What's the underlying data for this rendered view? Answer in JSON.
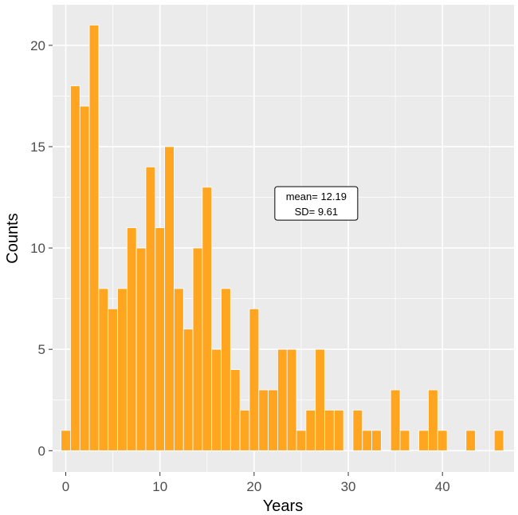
{
  "chart_data": {
    "type": "bar",
    "xlabel": "Years",
    "ylabel": "Counts",
    "xlim": [
      -1.4,
      47.6
    ],
    "ylim": [
      -1.05,
      22.0
    ],
    "x_ticks": [
      0,
      10,
      20,
      30,
      40
    ],
    "y_ticks": [
      0,
      5,
      10,
      15,
      20
    ],
    "grid": true,
    "bar_color": "#FFA520",
    "panel_background": "#EBEBEB",
    "grid_color": "#FFFFFF",
    "x": [
      0,
      1,
      2,
      3,
      4,
      5,
      6,
      7,
      8,
      9,
      10,
      11,
      12,
      13,
      14,
      15,
      16,
      17,
      18,
      19,
      20,
      21,
      22,
      23,
      24,
      25,
      26,
      27,
      28,
      29,
      30,
      31,
      32,
      33,
      34,
      35,
      36,
      37,
      38,
      39,
      40,
      41,
      42,
      43,
      44,
      45,
      46
    ],
    "values": [
      1,
      18,
      17,
      21,
      8,
      7,
      8,
      11,
      10,
      14,
      11,
      15,
      8,
      6,
      10,
      13,
      5,
      8,
      4,
      2,
      7,
      3,
      3,
      5,
      5,
      1,
      2,
      5,
      2,
      2,
      0,
      2,
      1,
      1,
      0,
      3,
      1,
      0,
      1,
      3,
      1,
      0,
      0,
      1,
      0,
      0,
      1
    ],
    "annotation": {
      "line1": "mean= 12.19",
      "line2": "SD= 9.61",
      "x": 26.6,
      "y": 12.2
    }
  }
}
